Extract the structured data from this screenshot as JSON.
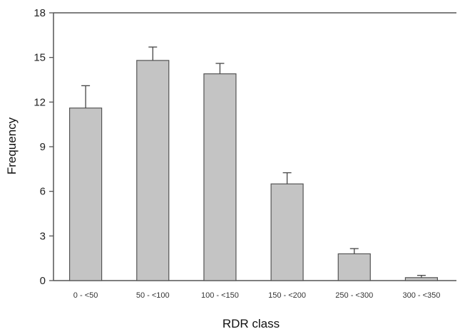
{
  "chart_data": {
    "type": "bar",
    "title": "",
    "xlabel": "RDR class",
    "ylabel": "Frequency",
    "categories": [
      "0 - <50",
      "50 - <100",
      "100 - <150",
      "150 - <200",
      "250 - <300",
      "300 - <350"
    ],
    "values": [
      11.6,
      14.8,
      13.9,
      6.5,
      1.8,
      0.2
    ],
    "error_upper": [
      1.5,
      0.9,
      0.7,
      0.75,
      0.35,
      0.15
    ],
    "ylim": [
      0,
      18
    ],
    "yticks": [
      0,
      3,
      6,
      9,
      12,
      15,
      18
    ],
    "grid": false,
    "colors": {
      "bar": "#c4c4c4",
      "bar_edge": "#555555",
      "axis": "#555555"
    }
  }
}
